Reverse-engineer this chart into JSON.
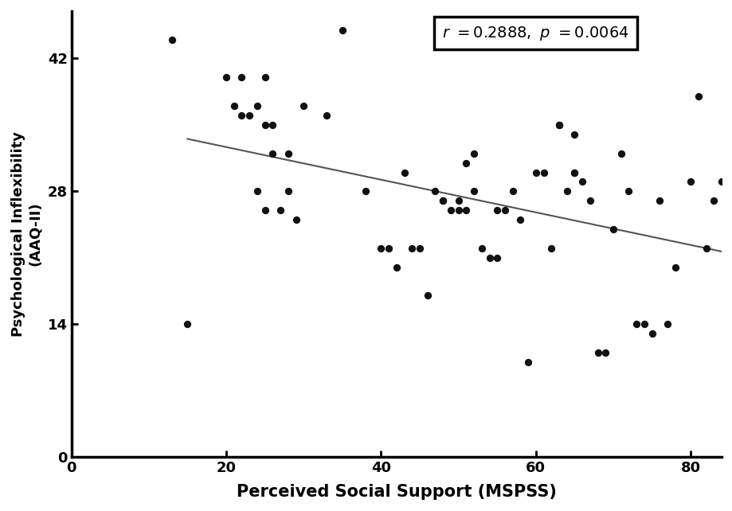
{
  "x_data": [
    13,
    15,
    20,
    21,
    22,
    22,
    23,
    24,
    24,
    25,
    25,
    25,
    26,
    26,
    27,
    28,
    28,
    29,
    30,
    33,
    35,
    38,
    40,
    41,
    42,
    43,
    44,
    45,
    46,
    47,
    48,
    48,
    49,
    50,
    50,
    51,
    51,
    52,
    52,
    53,
    54,
    55,
    55,
    56,
    57,
    58,
    59,
    60,
    61,
    62,
    63,
    63,
    64,
    65,
    65,
    65,
    66,
    67,
    68,
    69,
    70,
    71,
    72,
    73,
    74,
    75,
    76,
    77,
    78,
    80,
    81,
    82,
    83,
    84
  ],
  "y_data": [
    44,
    14,
    40,
    37,
    36,
    40,
    36,
    28,
    37,
    26,
    35,
    40,
    32,
    35,
    26,
    28,
    32,
    25,
    37,
    36,
    45,
    28,
    22,
    22,
    20,
    30,
    22,
    22,
    17,
    28,
    27,
    27,
    26,
    26,
    27,
    31,
    26,
    28,
    32,
    22,
    21,
    21,
    26,
    26,
    28,
    25,
    10,
    30,
    30,
    22,
    35,
    35,
    28,
    34,
    30,
    30,
    29,
    27,
    11,
    11,
    24,
    32,
    28,
    14,
    14,
    13,
    27,
    14,
    20,
    29,
    38,
    22,
    27,
    29
  ],
  "xlabel": "Perceived Social Support (MSPSS)",
  "ylabel": "Psychological Inflexibility\n(AAQ-II)",
  "xlim": [
    0,
    84
  ],
  "ylim": [
    0,
    47
  ],
  "xticks": [
    0,
    20,
    40,
    60,
    80
  ],
  "yticks": [
    0,
    14,
    28,
    42
  ],
  "dot_color": "#111111",
  "line_color": "#555555",
  "dot_size": 45,
  "line_start_x": 15,
  "line_end_x": 84,
  "line_start_y": 30.5,
  "line_end_y": 23.0,
  "xlabel_fontsize": 15,
  "ylabel_fontsize": 13,
  "tick_fontsize": 13,
  "annotation_fontsize": 14,
  "background_color": "#ffffff"
}
